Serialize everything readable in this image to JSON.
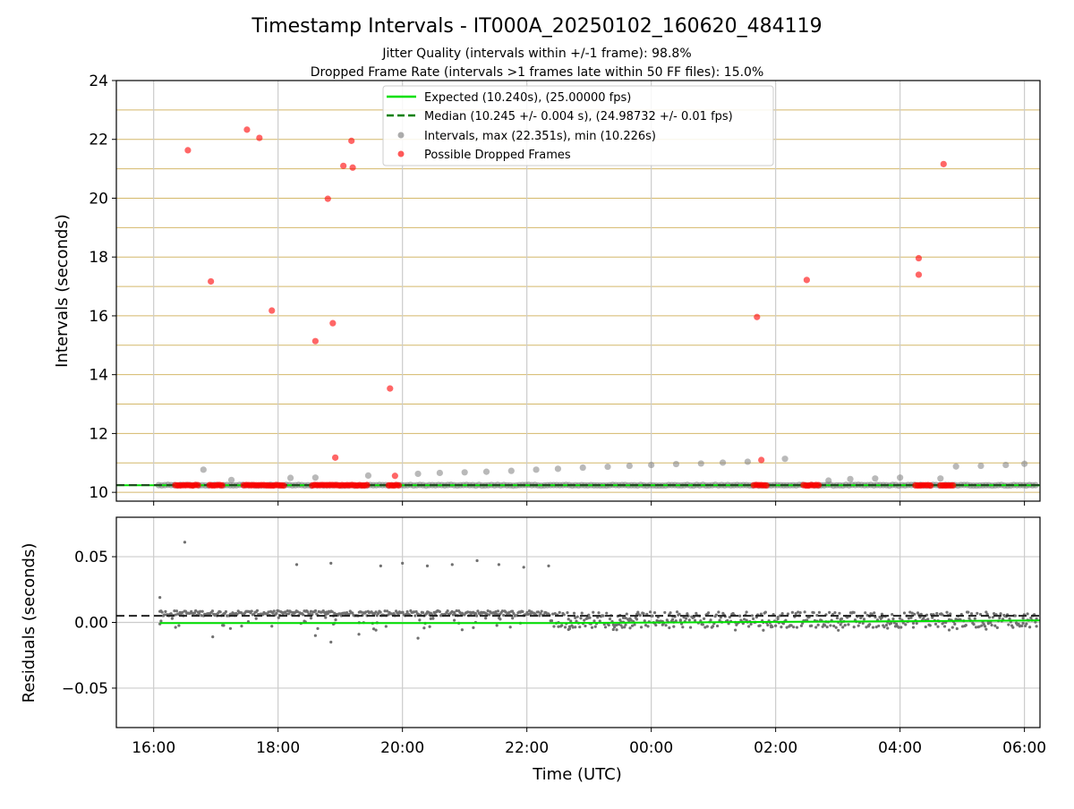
{
  "chart_data": [
    {
      "type": "scatter",
      "title": "Timestamp Intervals - IT000A_20250102_160620_484119",
      "subtitle_lines": [
        "Jitter Quality (intervals within +/-1 frame): 98.8%",
        "Dropped Frame Rate (intervals >1 frames late within 50 FF files): 15.0%"
      ],
      "xlabel": "",
      "ylabel": "Intervals (seconds)",
      "x_unit": "hours since 16:00 UTC on 2025-01-02",
      "xlim": [
        -0.6,
        14.25
      ],
      "ylim": [
        9.7,
        24
      ],
      "y_ticks": [
        10,
        12,
        14,
        16,
        18,
        20,
        22,
        24
      ],
      "x_ticks": [
        0,
        2,
        4,
        6,
        8,
        10,
        12,
        14
      ],
      "x_tick_labels": [
        "16:00",
        "18:00",
        "20:00",
        "22:00",
        "00:00",
        "02:00",
        "04:00",
        "06:00"
      ],
      "hlines": [
        10,
        11,
        12,
        13,
        14,
        15,
        16,
        17,
        18,
        19,
        20,
        21,
        22,
        23
      ],
      "grid": true,
      "legend_placement": "upper-center",
      "legend": [
        {
          "label": "Expected (10.240s), (25.00000 fps)",
          "style": "solid-line",
          "color": "#00e000"
        },
        {
          "label": "Median (10.245 +/- 0.004 s), (24.98732 +/- 0.01 fps)",
          "style": "dashed-line",
          "color": "#008000"
        },
        {
          "label": "Intervals, max (22.351s), min (10.226s)",
          "style": "marker",
          "color": "#808080"
        },
        {
          "label": "Possible Dropped Frames",
          "style": "marker",
          "color": "#ff0000"
        }
      ],
      "expected": 10.24,
      "median": 10.245,
      "series": [
        {
          "name": "Intervals",
          "color": "#808080",
          "baseline_range": [
            0.08,
            14.2
          ],
          "baseline_value": 10.24,
          "points": [
            [
              0.8,
              10.77
            ],
            [
              1.25,
              10.42
            ],
            [
              2.2,
              10.49
            ],
            [
              2.6,
              10.5
            ],
            [
              3.45,
              10.57
            ],
            [
              4.25,
              10.63
            ],
            [
              4.6,
              10.66
            ],
            [
              5.0,
              10.68
            ],
            [
              5.35,
              10.7
            ],
            [
              5.75,
              10.73
            ],
            [
              6.15,
              10.77
            ],
            [
              6.5,
              10.8
            ],
            [
              6.9,
              10.84
            ],
            [
              7.3,
              10.87
            ],
            [
              7.65,
              10.9
            ],
            [
              8.0,
              10.93
            ],
            [
              8.4,
              10.96
            ],
            [
              8.8,
              10.98
            ],
            [
              9.15,
              11.01
            ],
            [
              9.55,
              11.04
            ],
            [
              10.15,
              11.14
            ],
            [
              10.85,
              10.4
            ],
            [
              11.2,
              10.45
            ],
            [
              11.6,
              10.47
            ],
            [
              12.0,
              10.5
            ],
            [
              12.65,
              10.47
            ],
            [
              12.9,
              10.88
            ],
            [
              13.3,
              10.9
            ],
            [
              13.7,
              10.93
            ],
            [
              14.0,
              10.97
            ]
          ]
        },
        {
          "name": "Possible Dropped Frames",
          "color": "#ff0000",
          "points": [
            [
              0.55,
              21.63
            ],
            [
              0.92,
              17.17
            ],
            [
              1.5,
              22.33
            ],
            [
              1.7,
              22.05
            ],
            [
              1.9,
              16.18
            ],
            [
              2.6,
              15.14
            ],
            [
              2.8,
              19.98
            ],
            [
              2.88,
              15.75
            ],
            [
              2.92,
              11.18
            ],
            [
              3.05,
              21.1
            ],
            [
              3.18,
              21.95
            ],
            [
              3.2,
              21.04
            ],
            [
              3.8,
              13.53
            ],
            [
              3.88,
              10.56
            ],
            [
              9.7,
              15.96
            ],
            [
              9.77,
              11.1
            ],
            [
              10.5,
              17.22
            ],
            [
              12.3,
              17.96
            ],
            [
              12.3,
              17.4
            ],
            [
              12.7,
              21.16
            ]
          ],
          "clusters": [
            [
              0.35,
              0.75
            ],
            [
              0.9,
              1.1
            ],
            [
              1.45,
              2.1
            ],
            [
              2.55,
              3.45
            ],
            [
              3.78,
              3.95
            ],
            [
              9.65,
              9.85
            ],
            [
              10.45,
              10.7
            ],
            [
              12.25,
              12.5
            ],
            [
              12.65,
              12.85
            ]
          ],
          "cluster_value": 10.24
        }
      ]
    },
    {
      "type": "scatter",
      "title": "",
      "xlabel": "Time (UTC)",
      "ylabel": "Residuals (seconds)",
      "x_unit": "hours since 16:00 UTC on 2025-01-02",
      "xlim": [
        -0.6,
        14.25
      ],
      "ylim": [
        -0.08,
        0.08
      ],
      "y_ticks": [
        -0.05,
        0.0,
        0.05
      ],
      "y_tick_labels": [
        "−0.05",
        "0.00",
        "0.05"
      ],
      "x_ticks": [
        0,
        2,
        4,
        6,
        8,
        10,
        12,
        14
      ],
      "x_tick_labels": [
        "16:00",
        "18:00",
        "20:00",
        "22:00",
        "00:00",
        "02:00",
        "04:00",
        "06:00"
      ],
      "grid": true,
      "expected_line": {
        "x": [
          0.1,
          6.5,
          14.25
        ],
        "y": [
          -0.0005,
          -0.0005,
          0.0015
        ],
        "color": "#00e000"
      },
      "median_line": {
        "y": 0.005,
        "color": "#222222"
      },
      "series": [
        {
          "name": "Residuals",
          "color": "#808080",
          "baseline_range": [
            0.1,
            14.2
          ],
          "band_before": [
            0.005,
            0.009
          ],
          "band_after": [
            -0.004,
            0.008
          ],
          "band_change_x": 6.35,
          "outliers": [
            [
              0.1,
              0.019
            ],
            [
              0.5,
              0.061
            ],
            [
              2.3,
              0.044
            ],
            [
              2.85,
              0.045
            ],
            [
              3.65,
              0.043
            ],
            [
              4.0,
              0.045
            ],
            [
              4.4,
              0.043
            ],
            [
              4.8,
              0.044
            ],
            [
              5.2,
              0.047
            ],
            [
              5.55,
              0.044
            ],
            [
              5.95,
              0.042
            ],
            [
              6.35,
              0.043
            ],
            [
              4.25,
              -0.012
            ],
            [
              0.95,
              -0.011
            ],
            [
              2.6,
              -0.01
            ],
            [
              2.85,
              -0.015
            ],
            [
              3.3,
              -0.009
            ]
          ]
        }
      ]
    }
  ]
}
